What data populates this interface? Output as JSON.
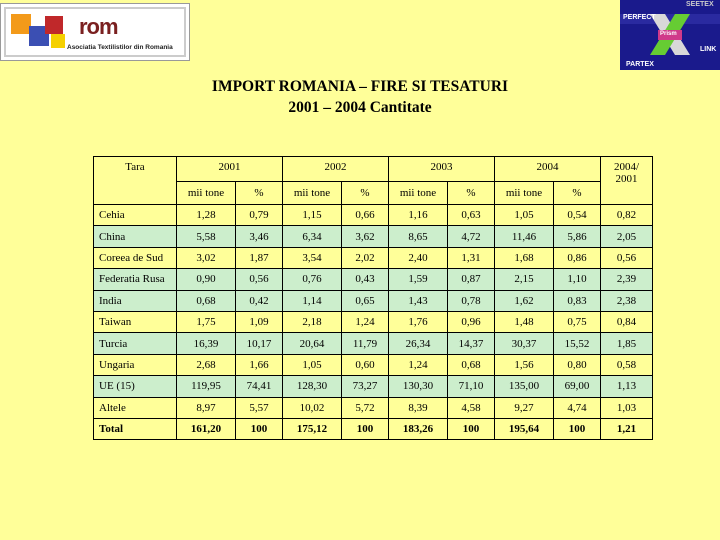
{
  "logo": {
    "word": "rom",
    "subtitle": "Asociatia Textilistilor din Romania"
  },
  "partner_logo": {
    "top_label": "SEETEX",
    "perfect": "PERFECT",
    "center": "Prism",
    "link": "LINK",
    "bottom_label": "PARTEX"
  },
  "title_line1": "IMPORT ROMANIA – FIRE SI TESATURI",
  "title_line2": "2001 – 2004 Cantitate",
  "table": {
    "country_header": "Tara",
    "years": [
      "2001",
      "2002",
      "2003",
      "2004"
    ],
    "ratio_header_line1": "2004/",
    "ratio_header_line2": "2001",
    "subheaders": [
      "mii tone",
      "%",
      "mii tone",
      "%",
      "mii tone",
      "%",
      "mii tone",
      "%"
    ],
    "rows": [
      {
        "country": "Cehia",
        "v": [
          "1,28",
          "0,79",
          "1,15",
          "0,66",
          "1,16",
          "0,63",
          "1,05",
          "0,54",
          "0,82"
        ],
        "highlight": false
      },
      {
        "country": "China",
        "v": [
          "5,58",
          "3,46",
          "6,34",
          "3,62",
          "8,65",
          "4,72",
          "11,46",
          "5,86",
          "2,05"
        ],
        "highlight": true
      },
      {
        "country": "Coreea de Sud",
        "v": [
          "3,02",
          "1,87",
          "3,54",
          "2,02",
          "2,40",
          "1,31",
          "1,68",
          "0,86",
          "0,56"
        ],
        "highlight": false
      },
      {
        "country": "Federatia Rusa",
        "v": [
          "0,90",
          "0,56",
          "0,76",
          "0,43",
          "1,59",
          "0,87",
          "2,15",
          "1,10",
          "2,39"
        ],
        "highlight": true
      },
      {
        "country": "India",
        "v": [
          "0,68",
          "0,42",
          "1,14",
          "0,65",
          "1,43",
          "0,78",
          "1,62",
          "0,83",
          "2,38"
        ],
        "highlight": true
      },
      {
        "country": "Taiwan",
        "v": [
          "1,75",
          "1,09",
          "2,18",
          "1,24",
          "1,76",
          "0,96",
          "1,48",
          "0,75",
          "0,84"
        ],
        "highlight": false
      },
      {
        "country": "Turcia",
        "v": [
          "16,39",
          "10,17",
          "20,64",
          "11,79",
          "26,34",
          "14,37",
          "30,37",
          "15,52",
          "1,85"
        ],
        "highlight": true
      },
      {
        "country": "Ungaria",
        "v": [
          "2,68",
          "1,66",
          "1,05",
          "0,60",
          "1,24",
          "0,68",
          "1,56",
          "0,80",
          "0,58"
        ],
        "highlight": false
      },
      {
        "country": "UE (15)",
        "v": [
          "119,95",
          "74,41",
          "128,30",
          "73,27",
          "130,30",
          "71,10",
          "135,00",
          "69,00",
          "1,13"
        ],
        "highlight": true
      },
      {
        "country": "Altele",
        "v": [
          "8,97",
          "5,57",
          "10,02",
          "5,72",
          "8,39",
          "4,58",
          "9,27",
          "4,74",
          "1,03"
        ],
        "highlight": false
      },
      {
        "country": "Total",
        "v": [
          "161,20",
          "100",
          "175,12",
          "100",
          "183,26",
          "100",
          "195,64",
          "100",
          "1,21"
        ],
        "highlight": false,
        "bold": true
      }
    ]
  }
}
